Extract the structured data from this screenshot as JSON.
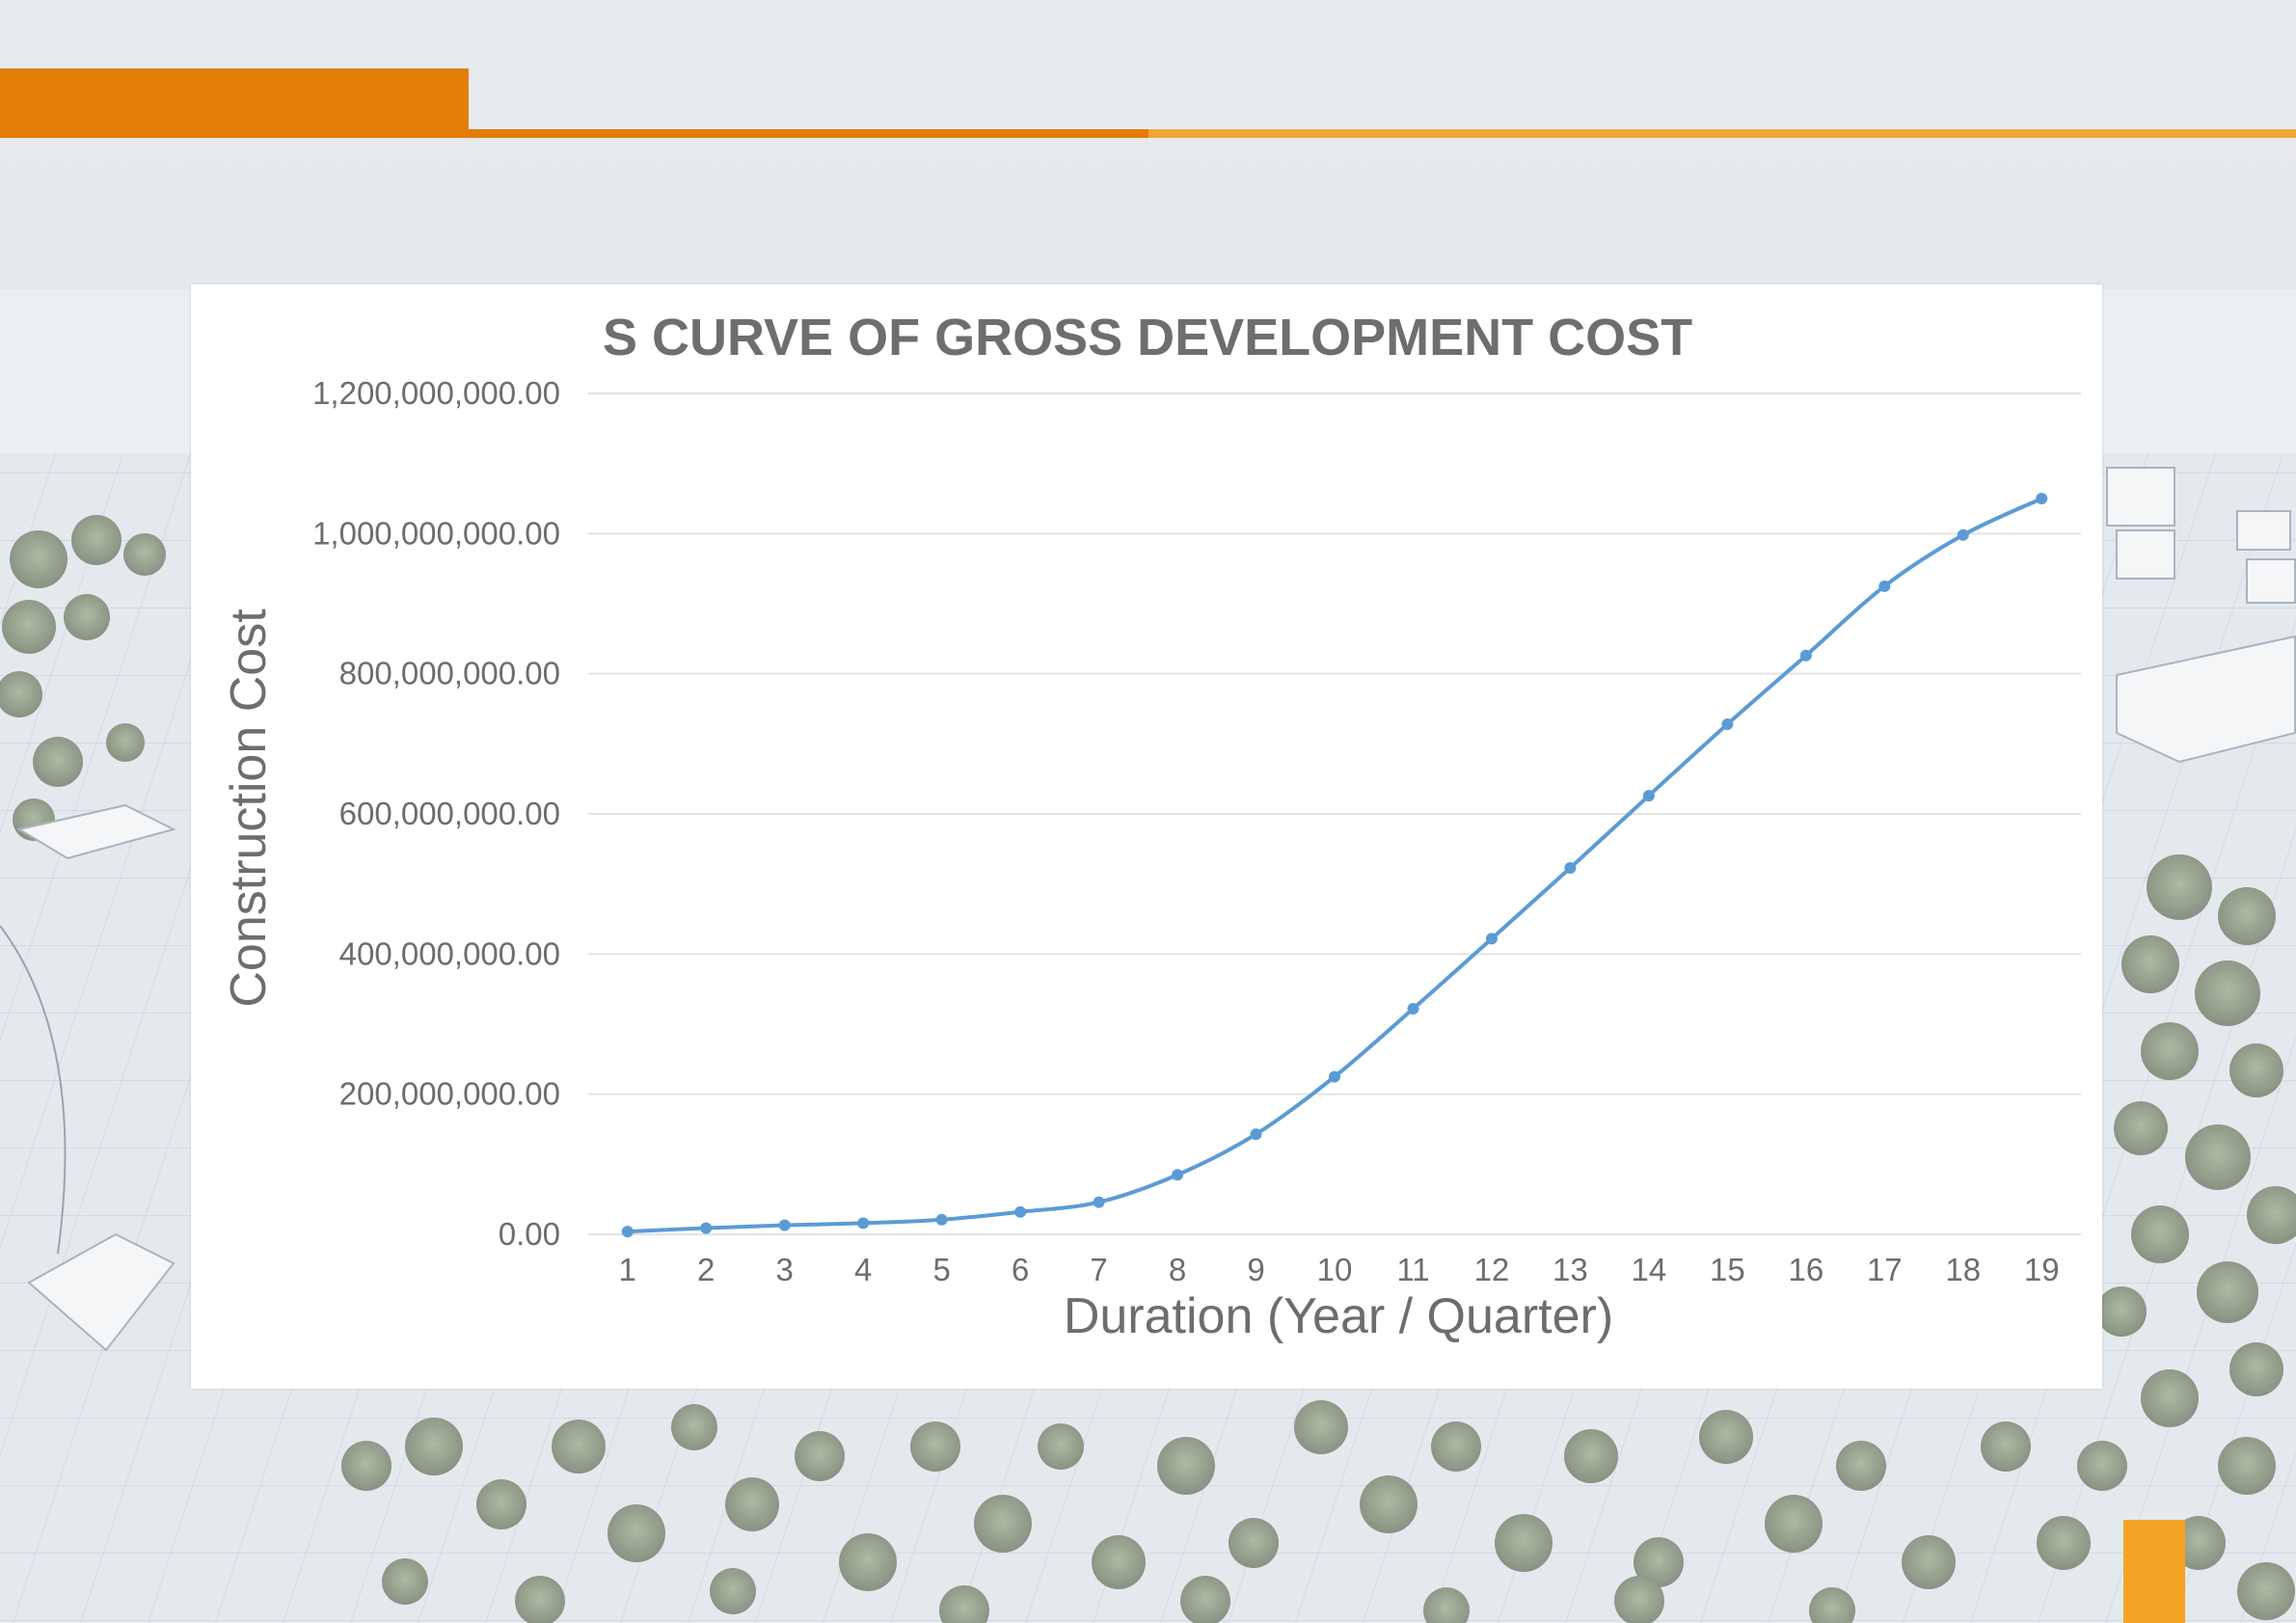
{
  "colors": {
    "accent_dark": "#e37d06",
    "accent_light": "#f1a53a",
    "corner_accent": "#f3a425",
    "series_line": "#5b9bd5",
    "grid": "#e3e3e3",
    "text": "#6d6d6d"
  },
  "chart_data": {
    "type": "line",
    "title": "S CURVE OF GROSS DEVELOPMENT COST",
    "xlabel": "Duration (Year / Quarter)",
    "ylabel": "Construction Cost",
    "categories": [
      "1",
      "2",
      "3",
      "4",
      "5",
      "6",
      "7",
      "8",
      "9",
      "10",
      "11",
      "12",
      "13",
      "14",
      "15",
      "16",
      "17",
      "18",
      "19"
    ],
    "y_tick_labels": [
      "0.00",
      "200,000,000.00",
      "400,000,000.00",
      "600,000,000.00",
      "800,000,000.00",
      "1,000,000,000.00",
      "1,200,000,000.00"
    ],
    "ylim": [
      0,
      1200000000
    ],
    "grid": true,
    "legend": "none",
    "series": [
      {
        "values": [
          4000000,
          9000000,
          13000000,
          16000000,
          21000000,
          32000000,
          46000000,
          85000000,
          143000000,
          225000000,
          322000000,
          422000000,
          523000000,
          626000000,
          728000000,
          826000000,
          925000000,
          998000000,
          1050000000
        ],
        "color": "#5b9bd5"
      }
    ]
  }
}
